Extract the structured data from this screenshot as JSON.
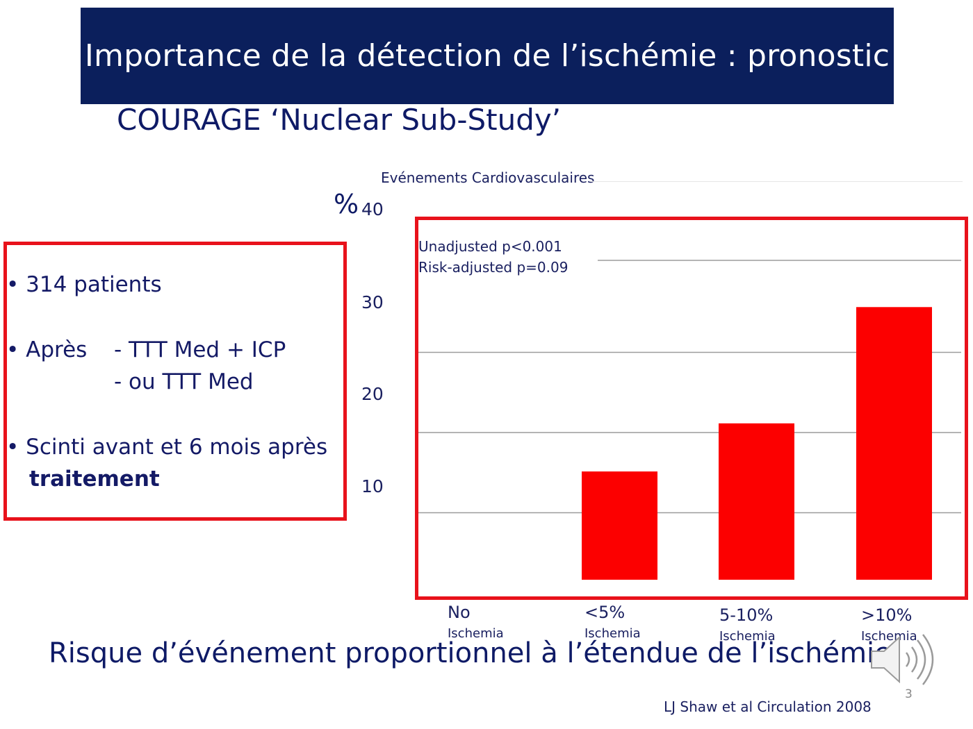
{
  "slide": {
    "title": "Importance de la détection de l’ischémie : pronostic",
    "subtitle": "COURAGE ‘Nuclear Sub-Study’",
    "footer": "Risque d’événement proportionnel à l’étendue de l’ischémie",
    "citation": "LJ Shaw et al Circulation 2008",
    "page_number": "3",
    "accent_color": "#e8121b",
    "title_bg_color": "#0b1f5c",
    "speaker_icon": "speaker-icon"
  },
  "info_box": {
    "line1": "• 314 patients",
    "line2a": "• Après",
    "line2b": "- TTT Med + ICP",
    "line3": "- ou TTT Med",
    "line4": "• Scinti avant et 6 mois après",
    "line5": "traitement"
  },
  "chart_data": {
    "type": "bar",
    "title": "Evénements Cardiovasculaires",
    "ylabel": "%",
    "ylim": [
      0,
      40
    ],
    "yticks": [
      "10",
      "20",
      "30",
      "40"
    ],
    "categories": [
      "No",
      "<5%",
      "5-10%",
      ">10%"
    ],
    "category_sublabels": [
      "Ischemia",
      "Ischemia",
      "Ischemia",
      "Ischemia"
    ],
    "values": [
      0,
      13.5,
      19.5,
      34
    ],
    "bar_color": "#fc0000",
    "grid": true,
    "annotations": [
      "Unadjusted p<0.001",
      "Risk-adjusted p=0.09"
    ]
  }
}
